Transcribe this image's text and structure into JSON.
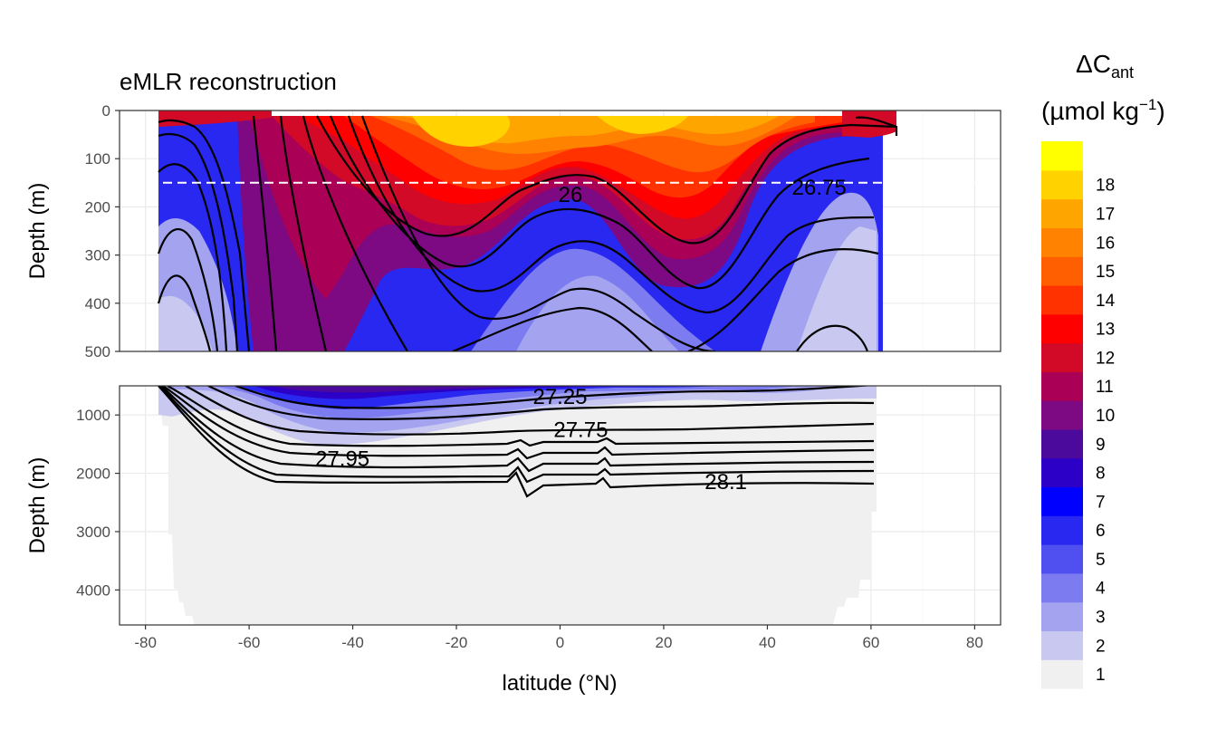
{
  "chart_data": {
    "type": "heatmap",
    "title": "eMLR reconstruction",
    "xlabel": "latitude (°N)",
    "ylabel": "Depth (m)",
    "legend": {
      "title_main": "ΔC",
      "title_sub": "ant",
      "units_pre": "(µmol kg",
      "units_sup": "−1",
      "units_post": ")",
      "levels": [
        "1",
        "2",
        "3",
        "4",
        "5",
        "6",
        "7",
        "8",
        "9",
        "10",
        "11",
        "12",
        "13",
        "14",
        "15",
        "16",
        "17",
        "18"
      ],
      "colors": [
        "#f0f0f0",
        "#c8c8f0",
        "#a3a3f0",
        "#7c7cf0",
        "#5050f0",
        "#2828f0",
        "#0000ff",
        "#2d00c8",
        "#4b0a9b",
        "#7d0a82",
        "#aa0055",
        "#d20a28",
        "#ff0000",
        "#ff3200",
        "#ff5f00",
        "#ff8200",
        "#ffa500",
        "#ffd200",
        "#ffff00"
      ],
      "placement": "right"
    },
    "x_ticks": [
      "-80",
      "-60",
      "-40",
      "-20",
      "0",
      "20",
      "40",
      "60",
      "80"
    ],
    "xlim": [
      -85,
      85
    ],
    "top_panel": {
      "ylim": [
        0,
        500
      ],
      "y_ticks": [
        "0",
        "100",
        "200",
        "300",
        "400",
        "500"
      ],
      "reference_depth": 150,
      "contour_labels": [
        {
          "text": "26",
          "lat": 2,
          "depth": 175
        },
        {
          "text": "26.75",
          "lat": 50,
          "depth": 160
        }
      ]
    },
    "bottom_panel": {
      "ylim": [
        500,
        4600
      ],
      "y_ticks": [
        "1000",
        "2000",
        "3000",
        "4000"
      ],
      "contour_labels": [
        {
          "text": "27.25",
          "lat": 0,
          "depth": 690
        },
        {
          "text": "27.75",
          "lat": 4,
          "depth": 1250
        },
        {
          "text": "27.95",
          "lat": -42,
          "depth": 1750
        },
        {
          "text": "28.1",
          "lat": 32,
          "depth": 2150
        }
      ]
    },
    "grid": true
  }
}
